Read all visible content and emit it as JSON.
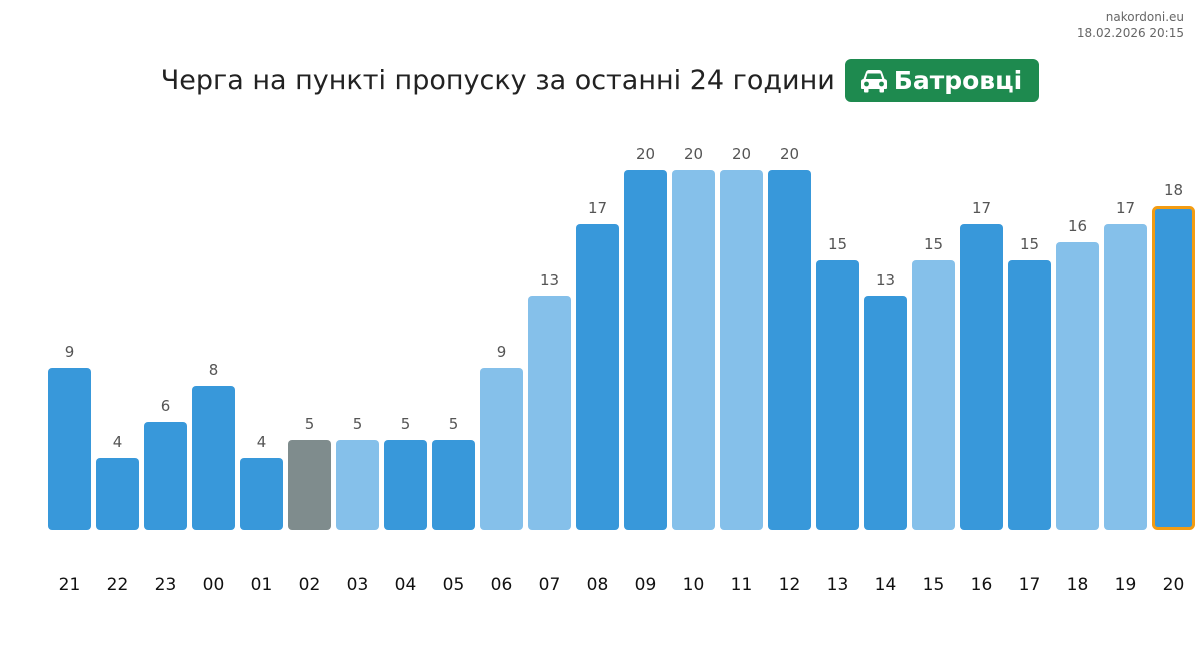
{
  "source": "nakordoni.eu",
  "timestamp": "18.02.2026 20:15",
  "header": {
    "title": "Черга на пункті пропуску за останні 24 години",
    "checkpoint": "Батровці",
    "vehicle_icon": "car-icon",
    "badge_color": "#1e8a4f"
  },
  "colors": {
    "bar_dark": "#3898da",
    "bar_light": "#85c0ea",
    "bar_gray": "#7f8c8d",
    "highlight_border": "#f39c12"
  },
  "chart_data": {
    "type": "bar",
    "categories": [
      "21",
      "22",
      "23",
      "00",
      "01",
      "02",
      "03",
      "04",
      "05",
      "06",
      "07",
      "08",
      "09",
      "10",
      "11",
      "12",
      "13",
      "14",
      "15",
      "16",
      "17",
      "18",
      "19",
      "20"
    ],
    "values": [
      9,
      4,
      6,
      8,
      4,
      5,
      5,
      5,
      5,
      9,
      13,
      17,
      20,
      20,
      20,
      20,
      15,
      13,
      15,
      17,
      15,
      16,
      17,
      18
    ],
    "bar_shades": [
      "dark",
      "dark",
      "dark",
      "dark",
      "dark",
      "gray",
      "light",
      "dark",
      "dark",
      "light",
      "light",
      "dark",
      "dark",
      "light",
      "light",
      "dark",
      "dark",
      "dark",
      "light",
      "dark",
      "dark",
      "light",
      "light",
      "dark"
    ],
    "highlighted_index": 23,
    "ylim": [
      0,
      20
    ],
    "grid": false,
    "legend": "none"
  }
}
